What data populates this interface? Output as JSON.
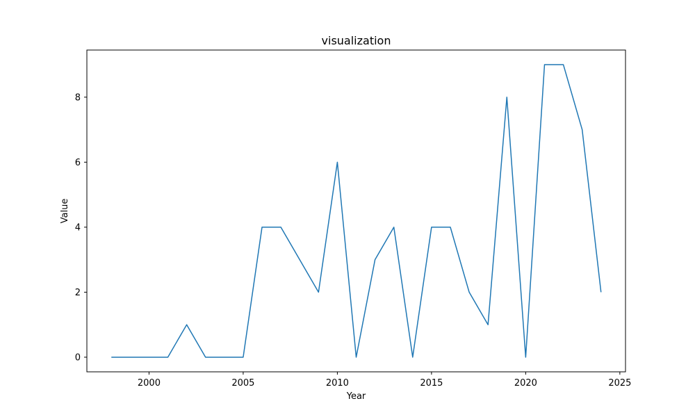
{
  "chart_data": {
    "type": "line",
    "title": "visualization",
    "xlabel": "Year",
    "ylabel": "Value",
    "xlim": [
      1996.7,
      2025.3
    ],
    "ylim": [
      -0.45,
      9.45
    ],
    "xticks": [
      2000,
      2005,
      2010,
      2015,
      2020,
      2025
    ],
    "yticks": [
      0,
      2,
      4,
      6,
      8
    ],
    "grid": false,
    "series": [
      {
        "color": "#1f77b4",
        "x": [
          1998,
          1999,
          2000,
          2001,
          2002,
          2003,
          2004,
          2005,
          2006,
          2007,
          2008,
          2009,
          2010,
          2011,
          2012,
          2013,
          2014,
          2015,
          2016,
          2017,
          2018,
          2019,
          2020,
          2021,
          2022,
          2023,
          2024
        ],
        "y": [
          0,
          0,
          0,
          0,
          1,
          0,
          0,
          0,
          4,
          4,
          3,
          2,
          6,
          0,
          3,
          4,
          0,
          4,
          4,
          2,
          1,
          8,
          0,
          9,
          9,
          7,
          2
        ]
      }
    ]
  }
}
